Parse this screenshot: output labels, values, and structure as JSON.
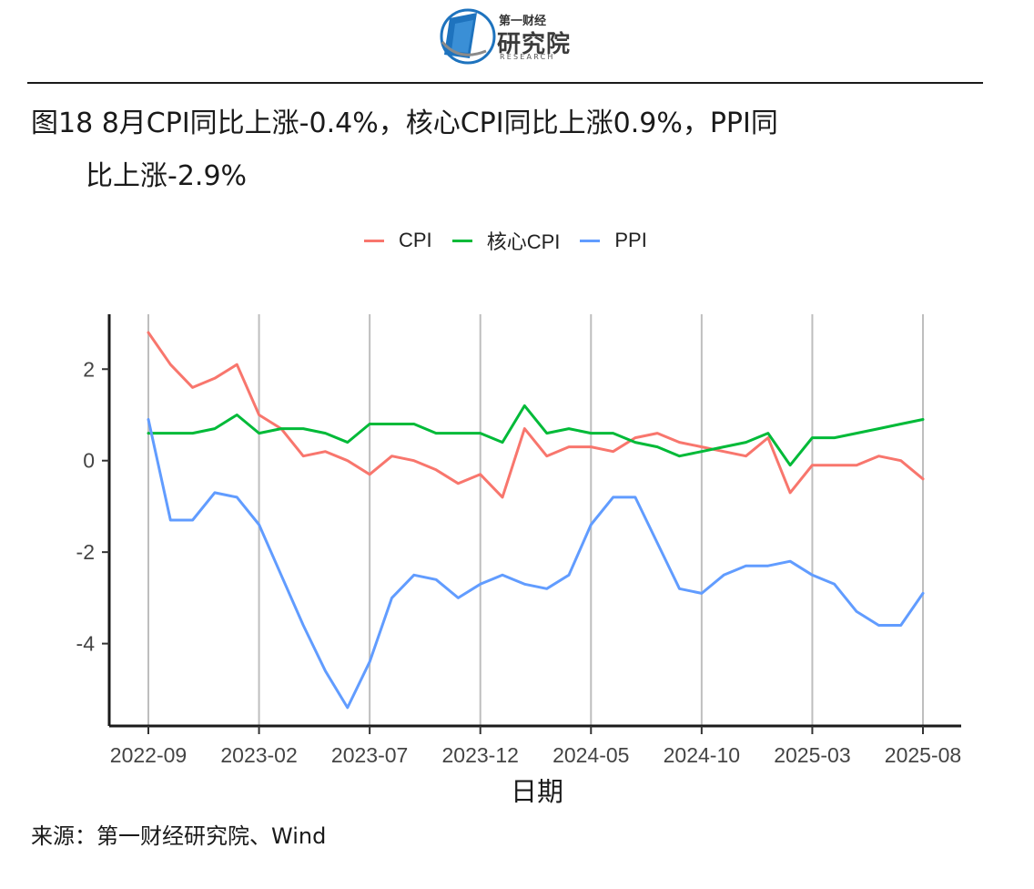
{
  "header": {
    "logo_sub": "第一财经",
    "logo_main": "研究院",
    "logo_en": "RESEARCH"
  },
  "figure": {
    "title_line1": "图18 8月CPI同比上涨-0.4%，核心CPI同比上涨0.9%，PPI同",
    "title_line2": "比上涨-2.9%",
    "source": "来源：第一财经研究院、Wind"
  },
  "colors": {
    "cpi": "#F8766D",
    "core_cpi": "#00BA38",
    "ppi": "#619CFF",
    "grid": "#BEBEBE",
    "axis": "#1a1a1a"
  },
  "chart_data": {
    "type": "line",
    "title": "",
    "xlabel": "日期",
    "ylabel": "",
    "ylim": [
      -5.8,
      3.2
    ],
    "yticks": [
      -4,
      -2,
      0,
      2
    ],
    "x": [
      "2022-09",
      "2022-10",
      "2022-11",
      "2022-12",
      "2023-01",
      "2023-02",
      "2023-03",
      "2023-04",
      "2023-05",
      "2023-06",
      "2023-07",
      "2023-08",
      "2023-09",
      "2023-10",
      "2023-11",
      "2023-12",
      "2024-01",
      "2024-02",
      "2024-03",
      "2024-04",
      "2024-05",
      "2024-06",
      "2024-07",
      "2024-08",
      "2024-09",
      "2024-10",
      "2024-11",
      "2024-12",
      "2025-01",
      "2025-02",
      "2025-03",
      "2025-04",
      "2025-05",
      "2025-06",
      "2025-07",
      "2025-08"
    ],
    "xticks": [
      "2022-09",
      "2023-02",
      "2023-07",
      "2023-12",
      "2024-05",
      "2024-10",
      "2025-03",
      "2025-08"
    ],
    "legend_position": "top",
    "grid": "vertical major",
    "series": [
      {
        "name": "CPI",
        "color_key": "cpi",
        "values": [
          2.8,
          2.1,
          1.6,
          1.8,
          2.1,
          1.0,
          0.7,
          0.1,
          0.2,
          0.0,
          -0.3,
          0.1,
          0.0,
          -0.2,
          -0.5,
          -0.3,
          -0.8,
          0.7,
          0.1,
          0.3,
          0.3,
          0.2,
          0.5,
          0.6,
          0.4,
          0.3,
          0.2,
          0.1,
          0.5,
          -0.7,
          -0.1,
          -0.1,
          -0.1,
          0.1,
          0.0,
          -0.4
        ]
      },
      {
        "name": "核心CPI",
        "color_key": "core_cpi",
        "values": [
          0.6,
          0.6,
          0.6,
          0.7,
          1.0,
          0.6,
          0.7,
          0.7,
          0.6,
          0.4,
          0.8,
          0.8,
          0.8,
          0.6,
          0.6,
          0.6,
          0.4,
          1.2,
          0.6,
          0.7,
          0.6,
          0.6,
          0.4,
          0.3,
          0.1,
          0.2,
          0.3,
          0.4,
          0.6,
          -0.1,
          0.5,
          0.5,
          0.6,
          0.7,
          0.8,
          0.9
        ]
      },
      {
        "name": "PPI",
        "color_key": "ppi",
        "values": [
          0.9,
          -1.3,
          -1.3,
          -0.7,
          -0.8,
          -1.4,
          -2.5,
          -3.6,
          -4.6,
          -5.4,
          -4.4,
          -3.0,
          -2.5,
          -2.6,
          -3.0,
          -2.7,
          -2.5,
          -2.7,
          -2.8,
          -2.5,
          -1.4,
          -0.8,
          -0.8,
          -1.8,
          -2.8,
          -2.9,
          -2.5,
          -2.3,
          -2.3,
          -2.2,
          -2.5,
          -2.7,
          -3.3,
          -3.6,
          -3.6,
          -2.9
        ]
      }
    ]
  }
}
